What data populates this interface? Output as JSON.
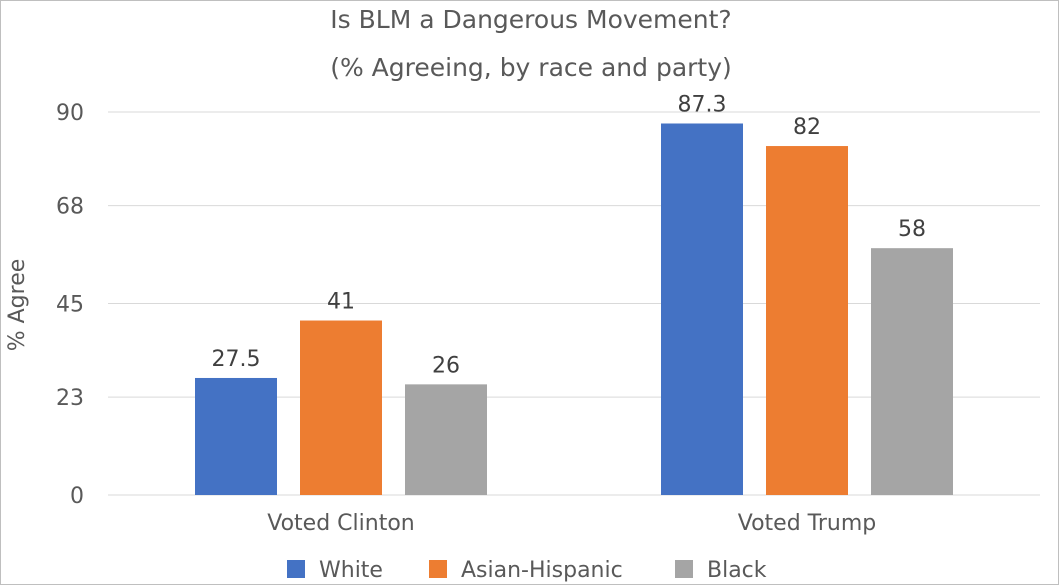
{
  "chart_data": {
    "type": "bar",
    "title_line1": "Is BLM a Dangerous Movement?",
    "title_line2": "(% Agreeing, by race and party)",
    "ylabel": "% Agree",
    "xlabel": "",
    "ylim": [
      0,
      90
    ],
    "yticks": [
      "0",
      "23",
      "45",
      "68",
      "90"
    ],
    "categories": [
      "Voted Clinton",
      "Voted Trump"
    ],
    "series": [
      {
        "name": "White",
        "color": "#4472c4",
        "values": [
          27.5,
          87.3
        ],
        "labels": [
          "27.5",
          "87.3"
        ]
      },
      {
        "name": "Asian-Hispanic",
        "color": "#ed7d31",
        "values": [
          41,
          82
        ],
        "labels": [
          "41",
          "82"
        ]
      },
      {
        "name": "Black",
        "color": "#a5a5a5",
        "values": [
          26,
          58
        ],
        "labels": [
          "26",
          "58"
        ]
      }
    ],
    "grid": true,
    "legend": "bottom"
  }
}
